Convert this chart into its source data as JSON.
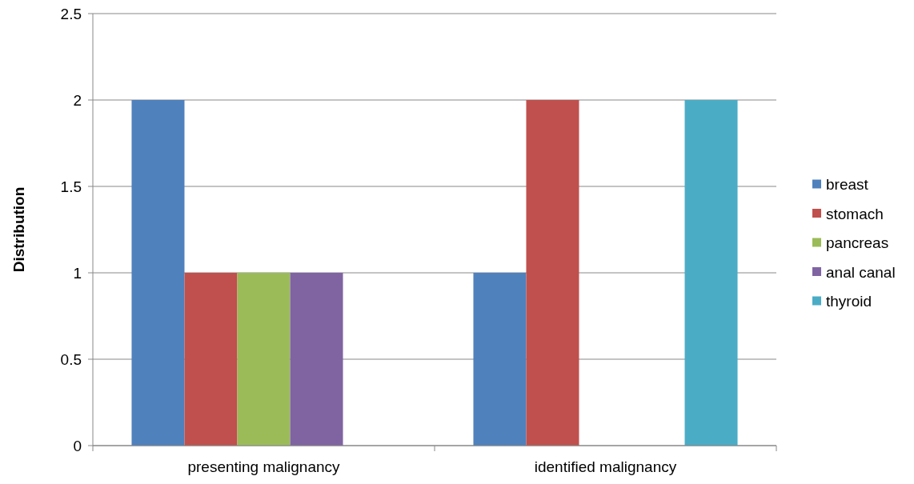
{
  "chart_data": {
    "type": "bar",
    "ylabel": "Distribution",
    "categories": [
      "presenting malignancy",
      "identified malignancy"
    ],
    "series": [
      {
        "name": "breast",
        "color": "#4f81bd",
        "values": [
          2,
          1
        ]
      },
      {
        "name": "stomach",
        "color": "#c0504d",
        "values": [
          1,
          2
        ]
      },
      {
        "name": "pancreas",
        "color": "#9bbb59",
        "values": [
          1,
          null
        ]
      },
      {
        "name": "anal canal",
        "color": "#8064a2",
        "values": [
          1,
          null
        ]
      },
      {
        "name": "thyroid",
        "color": "#4bacc6",
        "values": [
          null,
          2
        ]
      }
    ],
    "ylim": [
      0,
      2.5
    ],
    "yticks": [
      0,
      0.5,
      1,
      1.5,
      2,
      2.5
    ],
    "grid": "y",
    "legend": "right"
  }
}
